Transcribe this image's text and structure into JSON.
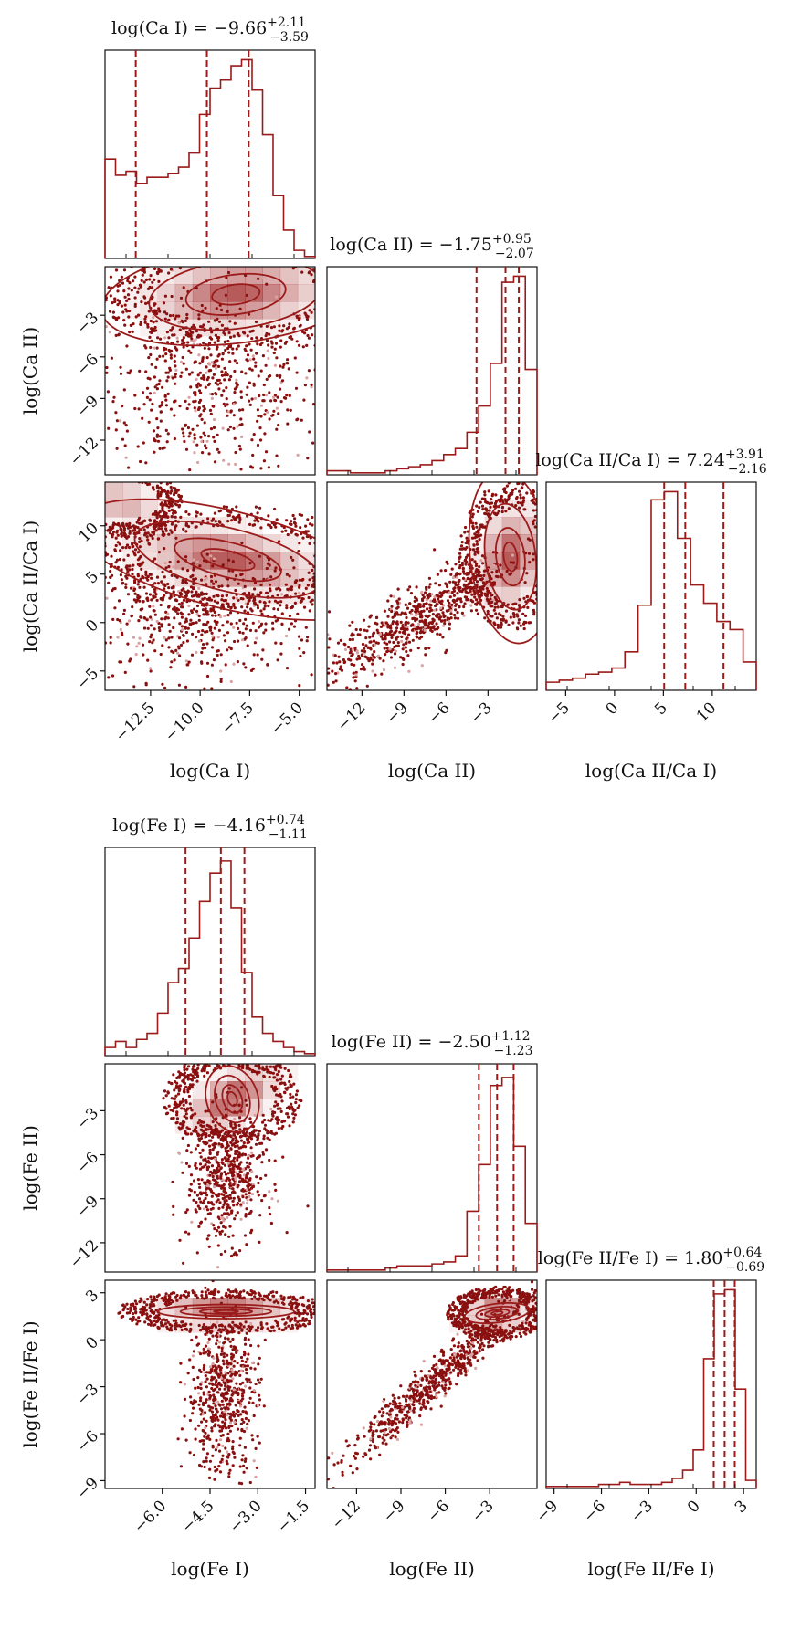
{
  "chart_data": [
    {
      "type": "corner",
      "id": "ca",
      "line_color": "#9b1b1b",
      "parameters": [
        {
          "name": "log(Ca I)",
          "range": [
            -14.8,
            -4.2
          ],
          "ticks": [
            -12.5,
            -10.0,
            -7.5,
            -5.0
          ],
          "tick_labels": [
            "−12.5",
            "−10.0",
            "−7.5",
            "−5.0"
          ]
        },
        {
          "name": "log(Ca II)",
          "range": [
            -14.5,
            0.5
          ],
          "ticks": [
            -12,
            -9,
            -6,
            -3
          ],
          "tick_labels": [
            "−12",
            "−9",
            "−6",
            "−3"
          ]
        },
        {
          "name": "log(Ca II/Ca I)",
          "range": [
            -7,
            14.5
          ],
          "ticks": [
            -5,
            0,
            5,
            10
          ],
          "tick_labels": [
            "−5",
            "0",
            "5",
            "10"
          ]
        }
      ],
      "marginal_titles": [
        {
          "main": "log(Ca I) = −9.66",
          "sup": "+2.11",
          "sub": "−3.59"
        },
        {
          "main": "log(Ca II) = −1.75",
          "sup": "+0.95",
          "sub": "−2.07"
        },
        {
          "main": "log(Ca II/Ca I) = 7.24",
          "sup": "+3.91",
          "sub": "−2.16"
        }
      ],
      "quantiles": [
        [
          -13.25,
          -9.66,
          -7.55
        ],
        [
          -3.82,
          -1.75,
          -0.8
        ],
        [
          5.08,
          7.24,
          11.15
        ]
      ],
      "histograms": [
        [
          0.49,
          0.41,
          0.43,
          0.37,
          0.4,
          0.4,
          0.42,
          0.45,
          0.52,
          0.71,
          0.84,
          0.88,
          0.95,
          0.98,
          0.83,
          0.61,
          0.31,
          0.14,
          0.04,
          0.01
        ],
        [
          0.02,
          0.02,
          0.01,
          0.01,
          0.01,
          0.02,
          0.03,
          0.04,
          0.05,
          0.07,
          0.1,
          0.13,
          0.21,
          0.34,
          0.55,
          0.95,
          0.98,
          0.52
        ],
        [
          0.04,
          0.05,
          0.06,
          0.08,
          0.09,
          0.11,
          0.19,
          0.42,
          0.94,
          0.98,
          0.75,
          0.52,
          0.43,
          0.34,
          0.3,
          0.14
        ]
      ],
      "pairs": [
        {
          "x": 0,
          "y": 1,
          "cores": [
            {
              "cx": -8.2,
              "cy": -1.5,
              "sx": 2.2,
              "sy": 1.3,
              "rho": 0.2,
              "w": 1.0
            }
          ],
          "scatter": [
            {
              "cx": -9.5,
              "cy": -8,
              "sx": 3,
              "sy": 3.3,
              "n": 650
            }
          ],
          "contour_rx": [
            0.55,
            1.15,
            2.0,
            3.1
          ],
          "contour_ry": [
            0.55,
            1.1,
            1.9,
            2.7
          ]
        },
        {
          "x": 0,
          "y": 2,
          "cores": [
            {
              "cx": -8.6,
              "cy": 6.5,
              "sx": 2.3,
              "sy": 1.8,
              "rho": -0.4,
              "w": 1.0
            },
            {
              "cx": -14.0,
              "cy": 12.5,
              "sx": 1.0,
              "sy": 1.2,
              "rho": -0.3,
              "w": 0.5
            }
          ],
          "scatter": [
            {
              "cx": -10,
              "cy": 1,
              "sx": 3,
              "sy": 3.5,
              "n": 650
            }
          ],
          "contour_rx": [
            0.6,
            1.2,
            2.1,
            3.4
          ],
          "contour_ry": [
            0.5,
            1.0,
            1.8,
            2.8
          ]
        },
        {
          "x": 1,
          "y": 2,
          "cores": [
            {
              "cx": -1.4,
              "cy": 6.8,
              "sx": 1.2,
              "sy": 2.5,
              "rho": 0.2,
              "w": 1.0
            }
          ],
          "scatter": [
            {
              "cx": -8,
              "cy": 0.5,
              "sx": 3.2,
              "sy": 3.2,
              "n": 700,
              "rho": 0.85
            }
          ],
          "contour_rx": [
            0.4,
            0.85,
            1.5,
            2.4
          ],
          "contour_ry": [
            0.6,
            1.2,
            2.2,
            3.6
          ]
        }
      ]
    },
    {
      "type": "corner",
      "id": "fe",
      "line_color": "#9b1b1b",
      "parameters": [
        {
          "name": "log(Fe I)",
          "range": [
            -7.8,
            -1.2
          ],
          "ticks": [
            -6.0,
            -4.5,
            -3.0,
            -1.5
          ],
          "tick_labels": [
            "−6.0",
            "−4.5",
            "−3.0",
            "−1.5"
          ]
        },
        {
          "name": "log(Fe II)",
          "range": [
            -14.0,
            0.2
          ],
          "ticks": [
            -12,
            -9,
            -6,
            -3
          ],
          "tick_labels": [
            "−12",
            "−9",
            "−6",
            "−3"
          ]
        },
        {
          "name": "log(Fe II/Fe I)",
          "range": [
            -9.5,
            3.8
          ],
          "ticks": [
            -9,
            -6,
            -3,
            0,
            3
          ],
          "tick_labels": [
            "−9",
            "−6",
            "−3",
            "0",
            "3"
          ]
        }
      ],
      "marginal_titles": [
        {
          "main": "log(Fe I) = −4.16",
          "sup": "+0.74",
          "sub": "−1.11"
        },
        {
          "main": "log(Fe II) = −2.50",
          "sup": "+1.12",
          "sub": "−1.23"
        },
        {
          "main": "log(Fe II/Fe I) = 1.80",
          "sup": "+0.64",
          "sub": "−0.69"
        }
      ],
      "quantiles": [
        [
          -5.27,
          -4.16,
          -3.42
        ],
        [
          -3.73,
          -2.5,
          -1.38
        ],
        [
          1.11,
          1.8,
          2.44
        ]
      ],
      "histograms": [
        [
          0.04,
          0.07,
          0.04,
          0.08,
          0.11,
          0.21,
          0.36,
          0.43,
          0.58,
          0.76,
          0.9,
          0.96,
          0.73,
          0.41,
          0.19,
          0.11,
          0.07,
          0.04,
          0.02,
          0.01
        ],
        [
          0.01,
          0.01,
          0.01,
          0.01,
          0.01,
          0.02,
          0.03,
          0.03,
          0.03,
          0.04,
          0.05,
          0.08,
          0.3,
          0.53,
          0.92,
          0.96,
          0.62,
          0.24
        ],
        [
          0.01,
          0.01,
          0.01,
          0.01,
          0.01,
          0.02,
          0.02,
          0.03,
          0.02,
          0.02,
          0.02,
          0.03,
          0.05,
          0.09,
          0.19,
          0.64,
          0.96,
          0.98,
          0.49,
          0.04
        ]
      ],
      "pairs": [
        {
          "x": 0,
          "y": 1,
          "cores": [
            {
              "cx": -3.8,
              "cy": -2.2,
              "sx": 0.7,
              "sy": 1.1,
              "rho": 0.55,
              "w": 1.0
            }
          ],
          "scatter": [
            {
              "cx": -4.0,
              "cy": -7.5,
              "sx": 0.6,
              "sy": 2.2,
              "n": 600
            }
          ],
          "contour_rx": [
            0.2,
            0.42,
            0.75,
            1.15
          ],
          "contour_ry": [
            0.45,
            0.9,
            1.5,
            2.1
          ]
        },
        {
          "x": 0,
          "y": 2,
          "cores": [
            {
              "cx": -4.0,
              "cy": 1.8,
              "sx": 1.1,
              "sy": 0.45,
              "rho": 0.0,
              "w": 1.0
            }
          ],
          "scatter": [
            {
              "cx": -4.1,
              "cy": -3.5,
              "sx": 0.55,
              "sy": 2.6,
              "n": 600
            }
          ],
          "contour_rx": [
            0.35,
            0.75,
            1.3,
            1.95
          ],
          "contour_ry": [
            0.18,
            0.36,
            0.65,
            1.0
          ]
        },
        {
          "x": 1,
          "y": 2,
          "cores": [
            {
              "cx": -2.5,
              "cy": 1.7,
              "sx": 1.1,
              "sy": 0.55,
              "rho": 0.2,
              "w": 1.0
            }
          ],
          "scatter": [
            {
              "cx": -6.5,
              "cy": -2.5,
              "sx": 3.3,
              "sy": 2.8,
              "n": 700,
              "rho": 0.97
            }
          ],
          "contour_rx": [
            0.35,
            0.75,
            1.3,
            2.0
          ],
          "contour_ry": [
            0.2,
            0.4,
            0.7,
            1.1
          ]
        }
      ]
    }
  ]
}
